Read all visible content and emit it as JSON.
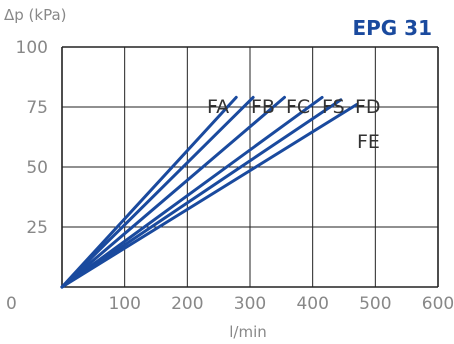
{
  "chart_data": {
    "type": "line",
    "title": "EPG 31",
    "xlabel": "l/min",
    "ylabel": "Δp (kPa)",
    "xlim": [
      0,
      600
    ],
    "ylim": [
      0,
      100
    ],
    "x_ticks": [
      0,
      100,
      200,
      300,
      400,
      500,
      600
    ],
    "y_ticks": [
      0,
      25,
      50,
      75,
      100
    ],
    "grid": true,
    "series": [
      {
        "name": "FA",
        "x": [
          0,
          278
        ],
        "y": [
          0,
          79
        ]
      },
      {
        "name": "FB",
        "x": [
          0,
          355
        ],
        "y": [
          0,
          79
        ]
      },
      {
        "name": "FC",
        "x": [
          0,
          415
        ],
        "y": [
          0,
          79
        ]
      },
      {
        "name": "FS",
        "x": [
          0,
          445
        ],
        "y": [
          0,
          78
        ]
      },
      {
        "name": "FD",
        "x": [
          0,
          470
        ],
        "y": [
          0,
          76
        ]
      },
      {
        "name": "FE",
        "x": [
          0,
          305
        ],
        "y": [
          0,
          79
        ]
      }
    ],
    "colors": {
      "line": "#1a4a9e",
      "title": "#1a4a9e",
      "grid": "#222222",
      "tick": "#888888",
      "label": "#333333"
    }
  }
}
